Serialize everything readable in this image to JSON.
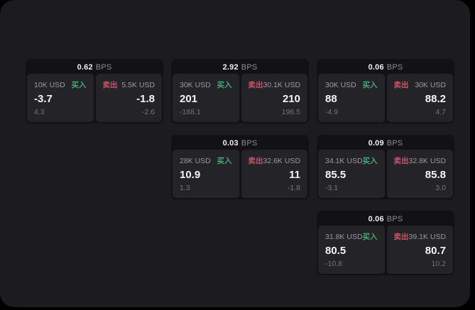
{
  "labels": {
    "bps_unit": "BPS",
    "buy": "买入",
    "sell": "卖出"
  },
  "colors": {
    "page_background": "#000000",
    "panel_background": "#1c1c1e",
    "card_background": "#121214",
    "tile_background": "#242428",
    "buy_green": "#46a873",
    "sell_red": "#c9556a",
    "price_white": "#f5f5f6",
    "label_gray": "#9b9b9f",
    "delta_gray": "#76767a"
  },
  "cards": [
    {
      "bps": "0.62",
      "buy": {
        "size": "10K USD",
        "value": "-3.7",
        "delta": "4.3"
      },
      "sell": {
        "size": "5.5K USD",
        "value": "-1.8",
        "delta": "-2.6"
      }
    },
    {
      "bps": "2.92",
      "buy": {
        "size": "30K USD",
        "value": "201",
        "delta": "-188.1"
      },
      "sell": {
        "size": "30.1K USD",
        "value": "210",
        "delta": "196.5"
      }
    },
    {
      "bps": "0.03",
      "buy": {
        "size": "28K USD",
        "value": "10.9",
        "delta": "1.3"
      },
      "sell": {
        "size": "32.6K USD",
        "value": "11",
        "delta": "-1.8"
      }
    },
    {
      "bps": "0.06",
      "buy": {
        "size": "30K USD",
        "value": "88",
        "delta": "-4.9"
      },
      "sell": {
        "size": "30K USD",
        "value": "88.2",
        "delta": "4.7"
      }
    },
    {
      "bps": "0.09",
      "buy": {
        "size": "34.1K USD",
        "value": "85.5",
        "delta": "-3.1"
      },
      "sell": {
        "size": "32.8K USD",
        "value": "85.8",
        "delta": "3.0"
      }
    },
    {
      "bps": "0.06",
      "buy": {
        "size": "31.8K USD",
        "value": "80.5",
        "delta": "-10.8"
      },
      "sell": {
        "size": "39.1K USD",
        "value": "80.7",
        "delta": "10.2"
      }
    }
  ]
}
